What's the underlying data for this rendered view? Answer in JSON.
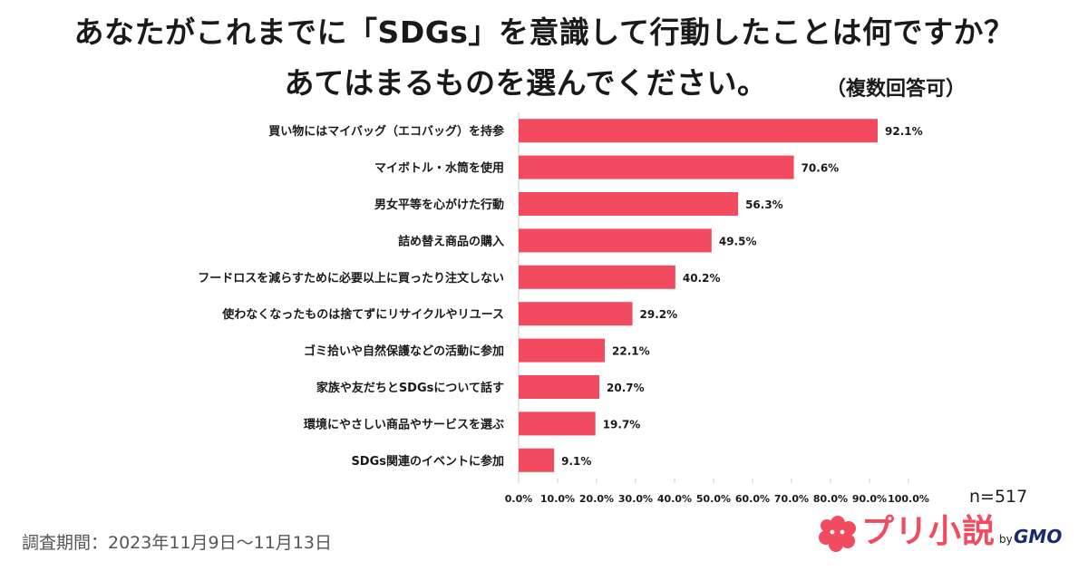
{
  "page": {
    "title_line1": "あなたがこれまでに「SDGs」を意識して行動したことは何ですか？",
    "title_line2": "あてはまるものを選んでください。",
    "title_note": "（複数回答可）",
    "n_label": "n=517",
    "survey_period": "調査期間：2023年11月9日〜11月13日",
    "logo_text": "プリ小説",
    "logo_by": "by",
    "logo_gmo": "GMO",
    "logo_icon": "cloud-flower-icon"
  },
  "colors": {
    "bar": "#f24a5e",
    "axis": "#cccccc",
    "grid": "#e6e6e6",
    "logo": "#f24a5e",
    "logo_gmo": "#1a2a6c"
  },
  "chart_data": {
    "type": "bar",
    "orientation": "horizontal",
    "title": "あなたがこれまでに「SDGs」を意識して行動したことは何ですか？あてはまるものを選んでください。",
    "categories": [
      "買い物にはマイバッグ（エコバッグ）を持参",
      "マイボトル・水筒を使用",
      "男女平等を心がけた行動",
      "詰め替え商品の購入",
      "フードロスを減らすために必要以上に買ったり注文しない",
      "使わなくなったものは捨てずにリサイクルやリユース",
      "ゴミ拾いや自然保護などの活動に参加",
      "家族や友だちとSDGsについて話す",
      "環境にやさしい商品やサービスを選ぶ",
      "SDGs関連のイベントに参加"
    ],
    "values": [
      92.1,
      70.6,
      56.3,
      49.5,
      40.2,
      29.2,
      22.1,
      20.7,
      19.7,
      9.1
    ],
    "value_labels": [
      "92.1%",
      "70.6%",
      "56.3%",
      "49.5%",
      "40.2%",
      "29.2%",
      "22.1%",
      "20.7%",
      "19.7%",
      "9.1%"
    ],
    "xlim": [
      0,
      100
    ],
    "x_ticks": [
      0,
      10,
      20,
      30,
      40,
      50,
      60,
      70,
      80,
      90,
      100
    ],
    "x_tick_labels": [
      "0.0%",
      "10.0%",
      "20.0%",
      "30.0%",
      "40.0%",
      "50.0%",
      "60.0%",
      "70.0%",
      "80.0%",
      "90.0%",
      "100.0%"
    ],
    "xlabel": "",
    "ylabel": "",
    "grid": false,
    "legend": "none"
  }
}
